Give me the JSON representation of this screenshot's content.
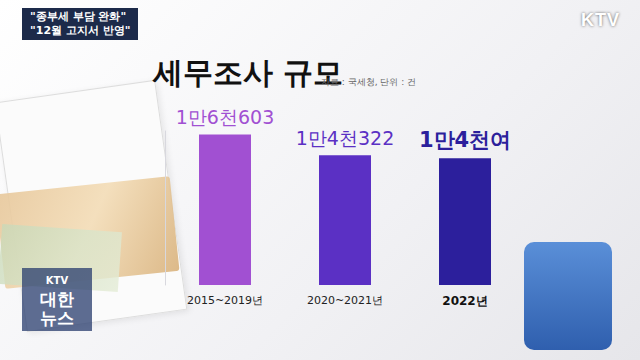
{
  "chart_data": {
    "type": "bar",
    "title": "세무조사 규모",
    "subtitle": "자료 : 국세청, 단위 : 건",
    "categories": [
      "2015~2019년",
      "2020~2021년",
      "2022년"
    ],
    "values": [
      16603,
      14322,
      14000
    ],
    "value_labels": [
      "1만6천603",
      "1만4천322",
      "1만4천여"
    ],
    "colors": [
      "#a150d2",
      "#5b30c4",
      "#2c1f9c"
    ],
    "ylim": [
      0,
      17000
    ],
    "grid": false,
    "data_labels": true,
    "tick_labels": "x"
  },
  "overlay": {
    "headline": [
      "\"종부세 부담 완화\"",
      "\"12월 고지서 반영\""
    ],
    "logo": "KTV",
    "program": [
      "KTV",
      "대한",
      "뉴스"
    ]
  }
}
